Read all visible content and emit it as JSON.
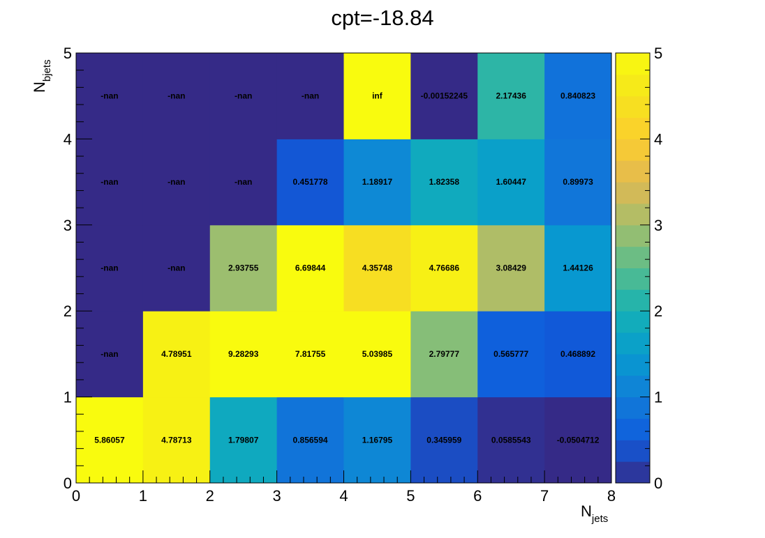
{
  "chart_data": {
    "type": "heatmap",
    "title": "cpt=-18.84",
    "xlabel": {
      "main": "N",
      "sub": "jets"
    },
    "ylabel": {
      "main": "N",
      "sub": "bjets"
    },
    "xlim": [
      0,
      8
    ],
    "ylim": [
      0,
      5
    ],
    "x_ticks": [
      "0",
      "1",
      "2",
      "3",
      "4",
      "5",
      "6",
      "7",
      "8"
    ],
    "y_ticks": [
      "0",
      "1",
      "2",
      "3",
      "4",
      "5"
    ],
    "colorbar": {
      "min": 0,
      "max": 5,
      "ticks": [
        "0",
        "1",
        "2",
        "3",
        "4",
        "5"
      ],
      "palette": "parula"
    },
    "rows": [
      {
        "y": 0,
        "labels": [
          "5.86057",
          "4.78713",
          "1.79807",
          "0.856594",
          "1.16795",
          "0.345959",
          "0.0585543",
          "-0.0504712"
        ]
      },
      {
        "y": 1,
        "labels": [
          "-nan",
          "4.78951",
          "9.28293",
          "7.81755",
          "5.03985",
          "2.79777",
          "0.565777",
          "0.468892"
        ]
      },
      {
        "y": 2,
        "labels": [
          "-nan",
          "-nan",
          "2.93755",
          "6.69844",
          "4.35748",
          "4.76686",
          "3.08429",
          "1.44126"
        ]
      },
      {
        "y": 3,
        "labels": [
          "-nan",
          "-nan",
          "-nan",
          "0.451778",
          "1.18917",
          "1.82358",
          "1.60447",
          "0.89973"
        ]
      },
      {
        "y": 4,
        "labels": [
          "-nan",
          "-nan",
          "-nan",
          "-nan",
          "inf",
          "-0.00152245",
          "2.17436",
          "0.840823"
        ]
      }
    ],
    "grid": false,
    "legend": "none"
  }
}
